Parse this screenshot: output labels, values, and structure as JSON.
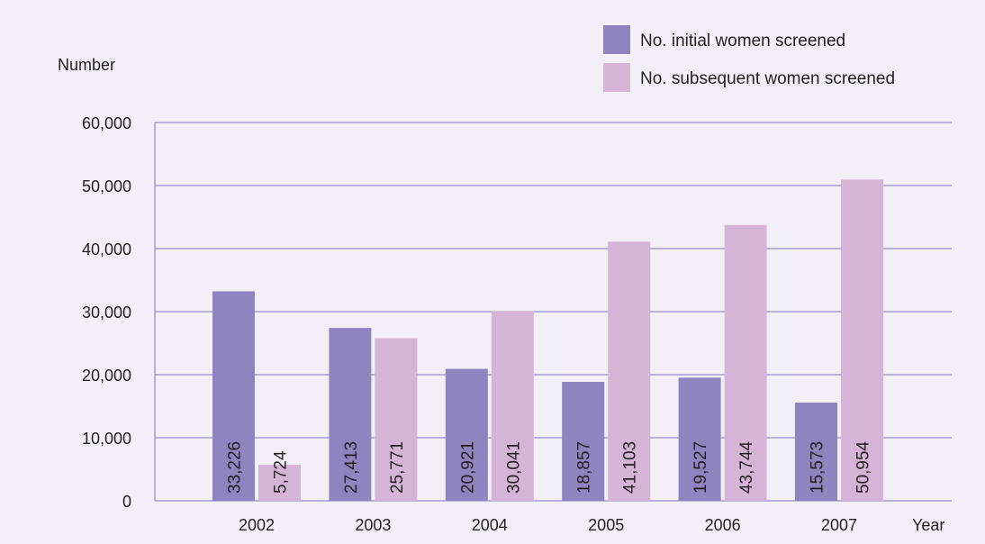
{
  "chart_data": {
    "type": "bar",
    "ylabel": "Number",
    "xlabel": "Year",
    "categories": [
      "2002",
      "2003",
      "2004",
      "2005",
      "2006",
      "2007"
    ],
    "ylim": [
      0,
      60000
    ],
    "yticks": [
      "0",
      "10,000",
      "20,000",
      "30,000",
      "40,000",
      "50,000",
      "60,000"
    ],
    "ytick_values": [
      0,
      10000,
      20000,
      30000,
      40000,
      50000,
      60000
    ],
    "grid": true,
    "legend_position": "top-right",
    "series": [
      {
        "name": "No. initial women screened",
        "color": "#8e84bf",
        "values": [
          33226,
          27413,
          20921,
          18857,
          19527,
          15573
        ],
        "labels": [
          "33,226",
          "27,413",
          "20,921",
          "18,857",
          "19,527",
          "15,573"
        ]
      },
      {
        "name": "No. subsequent women screened",
        "color": "#d6b4d8",
        "values": [
          5724,
          25771,
          30041,
          41103,
          43744,
          50954
        ],
        "labels": [
          "5,724",
          "25,771",
          "30,041",
          "41,103",
          "43,744",
          "50,954"
        ]
      }
    ],
    "gridline_color": "#7b74b4",
    "background_color": "#f2f0f6"
  }
}
